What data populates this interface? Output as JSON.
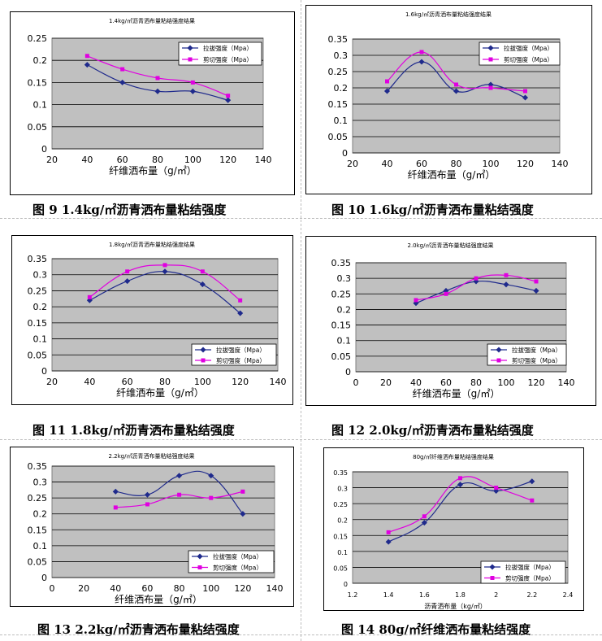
{
  "colors": {
    "tensile": "#1f2a8c",
    "shear": "#e000e0",
    "plot_bg": "#c0c0c0"
  },
  "chart_data": [
    {
      "type": "line",
      "title": "1.4kg/㎡沥青洒布量粘结强度结果",
      "xlabel": "纤维洒布量（g/㎡）",
      "ylabel": "",
      "xlim": [
        20,
        140
      ],
      "ylim": [
        0,
        0.25
      ],
      "xticks": [
        "20",
        "40",
        "60",
        "80",
        "100",
        "120",
        "140"
      ],
      "yticks": [
        "0",
        "0.05",
        "0.1",
        "0.15",
        "0.2",
        "0.25"
      ],
      "legend": "top-right",
      "grid": true,
      "series": [
        {
          "name": "拉拔强度（Mpa）",
          "x": [
            40,
            60,
            80,
            100,
            120
          ],
          "values": [
            0.19,
            0.15,
            0.13,
            0.13,
            0.11
          ]
        },
        {
          "name": "剪切强度（Mpa）",
          "x": [
            40,
            60,
            80,
            100,
            120
          ],
          "values": [
            0.21,
            0.18,
            0.16,
            0.15,
            0.12
          ]
        }
      ],
      "caption": "图 9  1.4kg/㎡沥青洒布量粘结强度"
    },
    {
      "type": "line",
      "title": "1.6kg/㎡沥青洒布量粘结强度结果",
      "xlabel": "纤维洒布量（g/㎡）",
      "ylabel": "",
      "xlim": [
        20,
        140
      ],
      "ylim": [
        0,
        0.35
      ],
      "xticks": [
        "20",
        "40",
        "60",
        "80",
        "100",
        "120",
        "140"
      ],
      "yticks": [
        "0",
        "0.05",
        "0.1",
        "0.15",
        "0.2",
        "0.25",
        "0.3",
        "0.35"
      ],
      "legend": "top-right",
      "grid": true,
      "series": [
        {
          "name": "拉拔强度（Mpa）",
          "x": [
            40,
            60,
            80,
            100,
            120
          ],
          "values": [
            0.19,
            0.28,
            0.19,
            0.21,
            0.17
          ]
        },
        {
          "name": "剪切强度（Mpa）",
          "x": [
            40,
            60,
            80,
            100,
            120
          ],
          "values": [
            0.22,
            0.31,
            0.21,
            0.2,
            0.19
          ]
        }
      ],
      "caption": "图 10  1.6kg/㎡沥青洒布量粘结强度"
    },
    {
      "type": "line",
      "title": "1.8kg/㎡沥青洒布量粘结强度结果",
      "xlabel": "纤维洒布量（g/㎡）",
      "ylabel": "",
      "xlim": [
        20,
        140
      ],
      "ylim": [
        0,
        0.35
      ],
      "xticks": [
        "20",
        "40",
        "60",
        "80",
        "100",
        "120",
        "140"
      ],
      "yticks": [
        "0",
        "0.05",
        "0.1",
        "0.15",
        "0.2",
        "0.25",
        "0.3",
        "0.35"
      ],
      "legend": "bottom-right",
      "grid": true,
      "series": [
        {
          "name": "拉拔强度（Mpa）",
          "x": [
            40,
            60,
            80,
            100,
            120
          ],
          "values": [
            0.22,
            0.28,
            0.31,
            0.27,
            0.18
          ]
        },
        {
          "name": "剪切强度（Mpa）",
          "x": [
            40,
            60,
            80,
            100,
            120
          ],
          "values": [
            0.23,
            0.31,
            0.33,
            0.31,
            0.22
          ]
        }
      ],
      "caption": "图 11  1.8kg/㎡沥青洒布量粘结强度"
    },
    {
      "type": "line",
      "title": "2.0kg/㎡沥青洒布量粘结强度结果",
      "xlabel": "纤维洒布量（g/㎡）",
      "ylabel": "",
      "xlim": [
        0,
        140
      ],
      "ylim": [
        0,
        0.35
      ],
      "xticks": [
        "0",
        "20",
        "40",
        "60",
        "80",
        "100",
        "120",
        "140"
      ],
      "yticks": [
        "0",
        "0.05",
        "0.1",
        "0.15",
        "0.2",
        "0.25",
        "0.3",
        "0.35"
      ],
      "legend": "bottom-right",
      "grid": true,
      "series": [
        {
          "name": "拉拔强度（Mpa）",
          "x": [
            40,
            60,
            80,
            100,
            120
          ],
          "values": [
            0.22,
            0.26,
            0.29,
            0.28,
            0.26
          ]
        },
        {
          "name": "剪切强度（Mpa）",
          "x": [
            40,
            60,
            80,
            100,
            120
          ],
          "values": [
            0.23,
            0.25,
            0.3,
            0.31,
            0.29
          ]
        }
      ],
      "caption": "图 12  2.0kg/㎡沥青洒布量粘结强度"
    },
    {
      "type": "line",
      "title": "2.2kg/㎡沥青洒布量粘结强度结果",
      "xlabel": "纤维洒布量（g/㎡）",
      "ylabel": "",
      "xlim": [
        0,
        140
      ],
      "ylim": [
        0,
        0.35
      ],
      "xticks": [
        "0",
        "20",
        "40",
        "60",
        "80",
        "100",
        "120",
        "140"
      ],
      "yticks": [
        "0",
        "0.05",
        "0.1",
        "0.15",
        "0.2",
        "0.25",
        "0.3",
        "0.35"
      ],
      "legend": "bottom-right",
      "grid": true,
      "series": [
        {
          "name": "拉拔强度（Mpa）",
          "x": [
            40,
            60,
            80,
            100,
            120
          ],
          "values": [
            0.27,
            0.26,
            0.32,
            0.32,
            0.2
          ]
        },
        {
          "name": "剪切强度（Mpa）",
          "x": [
            40,
            60,
            80,
            100,
            120
          ],
          "values": [
            0.22,
            0.23,
            0.26,
            0.25,
            0.27
          ]
        }
      ],
      "caption": "图 13 2.2kg/㎡沥青洒布量粘结强度"
    },
    {
      "type": "line",
      "title": "80g/㎡纤维洒布量粘结强度结果",
      "xlabel": "沥青洒布量（kg/㎡）",
      "ylabel": "",
      "xlim": [
        1.2,
        2.4
      ],
      "ylim": [
        0,
        0.35
      ],
      "xticks": [
        "1.2",
        "1.4",
        "1.6",
        "1.8",
        "2",
        "2.2",
        "2.4"
      ],
      "yticks": [
        "0",
        "0.05",
        "0.1",
        "0.15",
        "0.2",
        "0.25",
        "0.3",
        "0.35"
      ],
      "legend": "bottom-right",
      "grid": true,
      "series": [
        {
          "name": "拉拔强度（Mpa）",
          "x": [
            1.4,
            1.6,
            1.8,
            2.0,
            2.2
          ],
          "values": [
            0.13,
            0.19,
            0.31,
            0.29,
            0.32
          ]
        },
        {
          "name": "剪切强度（Mpa）",
          "x": [
            1.4,
            1.6,
            1.8,
            2.0,
            2.2
          ],
          "values": [
            0.16,
            0.21,
            0.33,
            0.3,
            0.26
          ]
        }
      ],
      "caption": "图 14  80g/㎡纤维洒布量粘结强度"
    }
  ]
}
